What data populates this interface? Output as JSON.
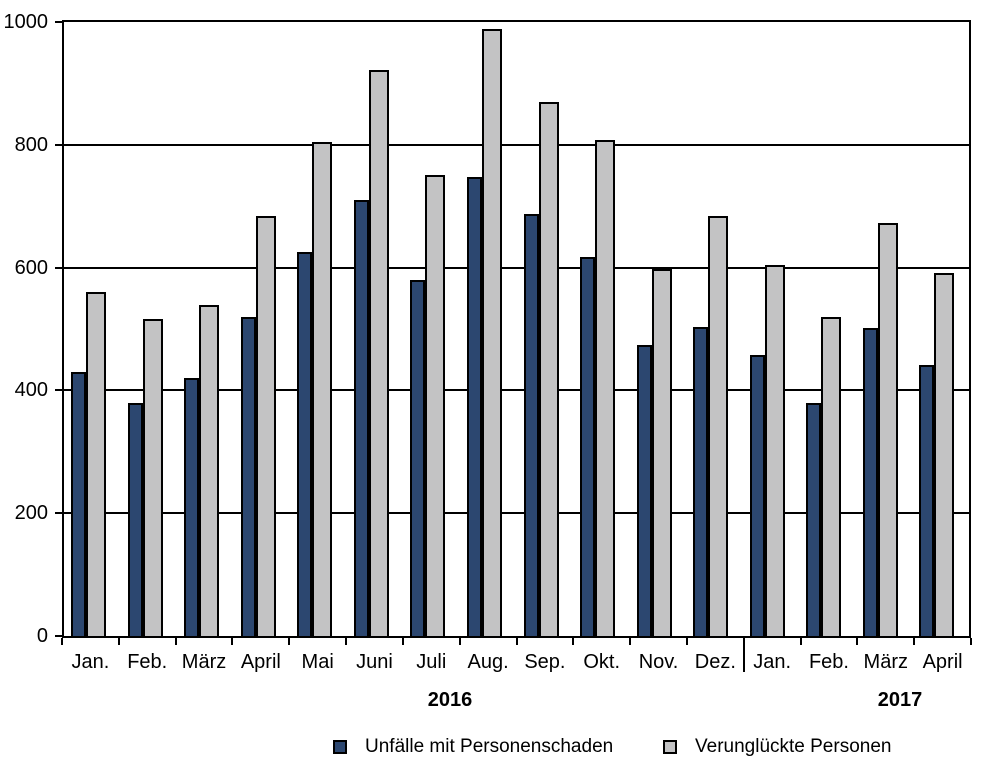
{
  "chart_data": {
    "type": "bar",
    "title": "",
    "categories": [
      "Jan.",
      "Feb.",
      "März",
      "April",
      "Mai",
      "Juni",
      "Juli",
      "Aug.",
      "Sep.",
      "Okt.",
      "Nov.",
      "Dez.",
      "Jan.",
      "Feb.",
      "März",
      "April"
    ],
    "year_groups": [
      {
        "label": "2016",
        "span": [
          0,
          11
        ]
      },
      {
        "label": "2017",
        "span": [
          12,
          15
        ]
      }
    ],
    "series": [
      {
        "name": "Unfälle mit Personenschaden",
        "color": "#2c4770",
        "values": [
          430,
          380,
          420,
          520,
          625,
          710,
          580,
          747,
          688,
          618,
          474,
          503,
          458,
          379,
          501,
          441
        ]
      },
      {
        "name": "Verunglückte Personen",
        "color": "#c3c3c4",
        "values": [
          561,
          517,
          539,
          684,
          804,
          922,
          750,
          989,
          869,
          808,
          598,
          684,
          605,
          520,
          672,
          591
        ]
      }
    ],
    "ylim": [
      0,
      1000
    ],
    "yticks": [
      0,
      200,
      400,
      600,
      800,
      1000
    ],
    "grid": "horizontal-major",
    "legend_position": "bottom",
    "axis_color": "#000000",
    "background_color": "#ffffff"
  }
}
